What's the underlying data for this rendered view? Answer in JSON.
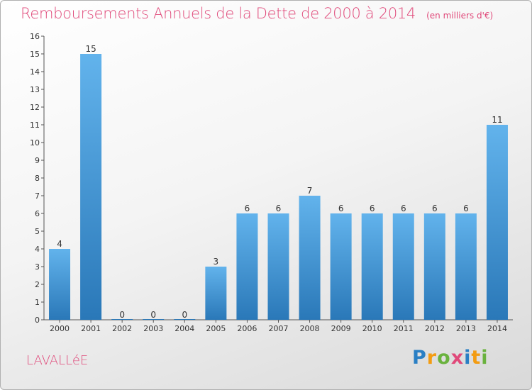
{
  "chart_data": {
    "type": "bar",
    "title": "Remboursements Annuels de la Dette de 2000 à 2014",
    "subtitle": "(en milliers d'€)",
    "categories": [
      "2000",
      "2001",
      "2002",
      "2003",
      "2004",
      "2005",
      "2006",
      "2007",
      "2008",
      "2009",
      "2010",
      "2011",
      "2012",
      "2013",
      "2014"
    ],
    "values": [
      4,
      15,
      0,
      0,
      0,
      3,
      6,
      6,
      7,
      6,
      6,
      6,
      6,
      6,
      11
    ],
    "data_labels": [
      "4",
      "15",
      "0",
      "0",
      "0",
      "3",
      "6",
      "6",
      "7",
      "6",
      "6",
      "6",
      "6",
      "6",
      "11"
    ],
    "ylim": [
      0,
      16
    ],
    "yticks": [
      "0",
      "1",
      "2",
      "3",
      "4",
      "5",
      "6",
      "7",
      "8",
      "9",
      "10",
      "11",
      "12",
      "13",
      "14",
      "15",
      "16"
    ],
    "xlabel": "",
    "ylabel": "",
    "grid": false,
    "colors": {
      "bar_top": "#62b3ec",
      "bar_bottom": "#2a78b8",
      "title": "#e0497a",
      "text": "#333333"
    }
  },
  "footer": {
    "commune": "LAVALLéE",
    "brand": "Proxiti",
    "brand_letters": [
      "P",
      "r",
      "o",
      "x",
      "i",
      "t",
      "i"
    ],
    "brand_colors": [
      "#2a7fc4",
      "#f39c12",
      "#6ab23e",
      "#e0497a",
      "#2a7fc4",
      "#f39c12",
      "#6ab23e"
    ]
  }
}
